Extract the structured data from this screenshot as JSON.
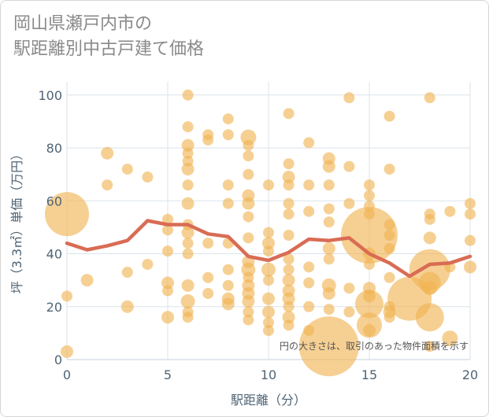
{
  "title": "岡山県瀬戸内市の\n駅距離別中古戸建て価格",
  "chart_data": {
    "type": "scatter",
    "title": "岡山県瀬戸内市の\n駅距離別中古戸建て価格",
    "xlabel": "駅距離（分）",
    "ylabel": "坪（3.3㎡）単価（万円）",
    "xlim": [
      0,
      20
    ],
    "ylim": [
      0,
      105
    ],
    "x_ticks": [
      0,
      5,
      10,
      15,
      20
    ],
    "y_ticks": [
      0,
      20,
      40,
      60,
      80,
      100
    ],
    "grid": true,
    "note": "円の大きさは、取引のあった物件面積を示す",
    "colors": {
      "bubble": "#f0b350",
      "line": "#d96c54",
      "grid": "#dbe3ea"
    },
    "scatter_series": {
      "name": "",
      "points": [
        {
          "x": 0,
          "y": 55,
          "s": 28
        },
        {
          "x": 0,
          "y": 24,
          "s": 7
        },
        {
          "x": 0,
          "y": 3,
          "s": 8
        },
        {
          "x": 1,
          "y": 30,
          "s": 8
        },
        {
          "x": 2,
          "y": 78,
          "s": 8
        },
        {
          "x": 2,
          "y": 66,
          "s": 7
        },
        {
          "x": 3,
          "y": 72,
          "s": 7
        },
        {
          "x": 3,
          "y": 33,
          "s": 7
        },
        {
          "x": 3,
          "y": 20,
          "s": 8
        },
        {
          "x": 4,
          "y": 69,
          "s": 7
        },
        {
          "x": 4,
          "y": 36,
          "s": 7
        },
        {
          "x": 5,
          "y": 53,
          "s": 7
        },
        {
          "x": 5,
          "y": 49,
          "s": 7
        },
        {
          "x": 5,
          "y": 41,
          "s": 7
        },
        {
          "x": 5,
          "y": 29,
          "s": 8
        },
        {
          "x": 5,
          "y": 26,
          "s": 7
        },
        {
          "x": 5,
          "y": 16,
          "s": 8
        },
        {
          "x": 6,
          "y": 100,
          "s": 7
        },
        {
          "x": 6,
          "y": 88,
          "s": 7
        },
        {
          "x": 6,
          "y": 81,
          "s": 8
        },
        {
          "x": 6,
          "y": 78,
          "s": 7
        },
        {
          "x": 6,
          "y": 75,
          "s": 7
        },
        {
          "x": 6,
          "y": 72,
          "s": 8
        },
        {
          "x": 6,
          "y": 66,
          "s": 7
        },
        {
          "x": 6,
          "y": 59,
          "s": 8
        },
        {
          "x": 6,
          "y": 51,
          "s": 7
        },
        {
          "x": 6,
          "y": 48,
          "s": 8
        },
        {
          "x": 6,
          "y": 44,
          "s": 7
        },
        {
          "x": 6,
          "y": 40,
          "s": 7
        },
        {
          "x": 6,
          "y": 28,
          "s": 8
        },
        {
          "x": 6,
          "y": 22,
          "s": 9
        },
        {
          "x": 6,
          "y": 18,
          "s": 7
        },
        {
          "x": 6,
          "y": 16,
          "s": 7
        },
        {
          "x": 7,
          "y": 85,
          "s": 7
        },
        {
          "x": 7,
          "y": 83,
          "s": 7
        },
        {
          "x": 7,
          "y": 44,
          "s": 7
        },
        {
          "x": 7,
          "y": 31,
          "s": 7
        },
        {
          "x": 7,
          "y": 25,
          "s": 7
        },
        {
          "x": 8,
          "y": 91,
          "s": 7
        },
        {
          "x": 8,
          "y": 85,
          "s": 7
        },
        {
          "x": 8,
          "y": 66,
          "s": 7
        },
        {
          "x": 8,
          "y": 59,
          "s": 7
        },
        {
          "x": 8,
          "y": 44,
          "s": 7
        },
        {
          "x": 8,
          "y": 34,
          "s": 7
        },
        {
          "x": 8,
          "y": 28,
          "s": 7
        },
        {
          "x": 8,
          "y": 23,
          "s": 8
        },
        {
          "x": 8,
          "y": 21,
          "s": 8
        },
        {
          "x": 9,
          "y": 84,
          "s": 10
        },
        {
          "x": 9,
          "y": 81,
          "s": 7
        },
        {
          "x": 9,
          "y": 77,
          "s": 7
        },
        {
          "x": 9,
          "y": 70,
          "s": 7
        },
        {
          "x": 9,
          "y": 62,
          "s": 8
        },
        {
          "x": 9,
          "y": 59,
          "s": 8
        },
        {
          "x": 9,
          "y": 54,
          "s": 7
        },
        {
          "x": 9,
          "y": 46,
          "s": 7
        },
        {
          "x": 9,
          "y": 37,
          "s": 8
        },
        {
          "x": 9,
          "y": 34,
          "s": 9
        },
        {
          "x": 9,
          "y": 31,
          "s": 7
        },
        {
          "x": 9,
          "y": 28,
          "s": 8
        },
        {
          "x": 9,
          "y": 25,
          "s": 8
        },
        {
          "x": 9,
          "y": 22,
          "s": 8
        },
        {
          "x": 9,
          "y": 18,
          "s": 7
        },
        {
          "x": 9,
          "y": 15,
          "s": 7
        },
        {
          "x": 10,
          "y": 66,
          "s": 7
        },
        {
          "x": 10,
          "y": 48,
          "s": 7
        },
        {
          "x": 10,
          "y": 44,
          "s": 8
        },
        {
          "x": 10,
          "y": 41,
          "s": 7
        },
        {
          "x": 10,
          "y": 34,
          "s": 9
        },
        {
          "x": 10,
          "y": 30,
          "s": 7
        },
        {
          "x": 10,
          "y": 23,
          "s": 8
        },
        {
          "x": 10,
          "y": 18,
          "s": 8
        },
        {
          "x": 10,
          "y": 14,
          "s": 7
        },
        {
          "x": 10,
          "y": 11,
          "s": 7
        },
        {
          "x": 11,
          "y": 93,
          "s": 7
        },
        {
          "x": 11,
          "y": 74,
          "s": 7
        },
        {
          "x": 11,
          "y": 69,
          "s": 8
        },
        {
          "x": 11,
          "y": 66,
          "s": 7
        },
        {
          "x": 11,
          "y": 59,
          "s": 7
        },
        {
          "x": 11,
          "y": 55,
          "s": 7
        },
        {
          "x": 11,
          "y": 47,
          "s": 7
        },
        {
          "x": 11,
          "y": 38,
          "s": 7
        },
        {
          "x": 11,
          "y": 34,
          "s": 7
        },
        {
          "x": 11,
          "y": 30,
          "s": 8
        },
        {
          "x": 11,
          "y": 26,
          "s": 8
        },
        {
          "x": 11,
          "y": 23,
          "s": 8
        },
        {
          "x": 11,
          "y": 20,
          "s": 7
        },
        {
          "x": 11,
          "y": 16,
          "s": 8
        },
        {
          "x": 11,
          "y": 13,
          "s": 7
        },
        {
          "x": 12,
          "y": 82,
          "s": 7
        },
        {
          "x": 12,
          "y": 66,
          "s": 7
        },
        {
          "x": 12,
          "y": 56,
          "s": 7
        },
        {
          "x": 12,
          "y": 35,
          "s": 7
        },
        {
          "x": 12,
          "y": 29,
          "s": 7
        },
        {
          "x": 12,
          "y": 20,
          "s": 7
        },
        {
          "x": 12,
          "y": 11,
          "s": 7
        },
        {
          "x": 13,
          "y": 76,
          "s": 8
        },
        {
          "x": 13,
          "y": 73,
          "s": 8
        },
        {
          "x": 13,
          "y": 66,
          "s": 7
        },
        {
          "x": 13,
          "y": 57,
          "s": 7
        },
        {
          "x": 13,
          "y": 52,
          "s": 7
        },
        {
          "x": 13,
          "y": 42,
          "s": 8
        },
        {
          "x": 13,
          "y": 38,
          "s": 7
        },
        {
          "x": 13,
          "y": 28,
          "s": 9
        },
        {
          "x": 13,
          "y": 25,
          "s": 8
        },
        {
          "x": 13,
          "y": 19,
          "s": 7
        },
        {
          "x": 13,
          "y": 5,
          "s": 38
        },
        {
          "x": 14,
          "y": 99,
          "s": 7
        },
        {
          "x": 14,
          "y": 73,
          "s": 7
        },
        {
          "x": 14,
          "y": 59,
          "s": 7
        },
        {
          "x": 14,
          "y": 27,
          "s": 7
        },
        {
          "x": 14,
          "y": 18,
          "s": 7
        },
        {
          "x": 15,
          "y": 66,
          "s": 7
        },
        {
          "x": 15,
          "y": 62,
          "s": 7
        },
        {
          "x": 15,
          "y": 58,
          "s": 7
        },
        {
          "x": 15,
          "y": 55,
          "s": 7
        },
        {
          "x": 15,
          "y": 47,
          "s": 36
        },
        {
          "x": 15,
          "y": 40,
          "s": 8
        },
        {
          "x": 15,
          "y": 36,
          "s": 7
        },
        {
          "x": 15,
          "y": 27,
          "s": 8
        },
        {
          "x": 15,
          "y": 24,
          "s": 8
        },
        {
          "x": 15,
          "y": 21,
          "s": 18
        },
        {
          "x": 15,
          "y": 13,
          "s": 16
        },
        {
          "x": 15,
          "y": 11,
          "s": 8
        },
        {
          "x": 16,
          "y": 92,
          "s": 7
        },
        {
          "x": 16,
          "y": 72,
          "s": 7
        },
        {
          "x": 16,
          "y": 51,
          "s": 7
        },
        {
          "x": 16,
          "y": 47,
          "s": 7
        },
        {
          "x": 16,
          "y": 42,
          "s": 7
        },
        {
          "x": 16,
          "y": 31,
          "s": 7
        },
        {
          "x": 16,
          "y": 20,
          "s": 7
        },
        {
          "x": 16,
          "y": 18,
          "s": 8
        },
        {
          "x": 16,
          "y": 16,
          "s": 7
        },
        {
          "x": 17,
          "y": 23,
          "s": 28
        },
        {
          "x": 18,
          "y": 99,
          "s": 7
        },
        {
          "x": 18,
          "y": 55,
          "s": 7
        },
        {
          "x": 18,
          "y": 53,
          "s": 7
        },
        {
          "x": 18,
          "y": 46,
          "s": 8
        },
        {
          "x": 18,
          "y": 34,
          "s": 26
        },
        {
          "x": 18,
          "y": 29,
          "s": 14
        },
        {
          "x": 18,
          "y": 27,
          "s": 9
        },
        {
          "x": 18,
          "y": 16,
          "s": 18
        },
        {
          "x": 18,
          "y": 5,
          "s": 7
        },
        {
          "x": 19,
          "y": 56,
          "s": 7
        },
        {
          "x": 19,
          "y": 35,
          "s": 7
        },
        {
          "x": 19,
          "y": 8,
          "s": 10
        },
        {
          "x": 20,
          "y": 59,
          "s": 7
        },
        {
          "x": 20,
          "y": 55,
          "s": 7
        },
        {
          "x": 20,
          "y": 45,
          "s": 7
        },
        {
          "x": 20,
          "y": 35,
          "s": 8
        }
      ]
    },
    "line_series": {
      "name": "",
      "x": [
        0,
        1,
        2,
        3,
        4,
        5,
        6,
        7,
        8,
        9,
        10,
        11,
        12,
        13,
        14,
        15,
        16,
        17,
        18,
        19,
        20
      ],
      "y": [
        44,
        41.5,
        43,
        45,
        52.5,
        51,
        51,
        47.5,
        46.5,
        39,
        37.5,
        40.5,
        45.5,
        45,
        46,
        40,
        36.5,
        31.5,
        36,
        36.5,
        39
      ]
    }
  }
}
